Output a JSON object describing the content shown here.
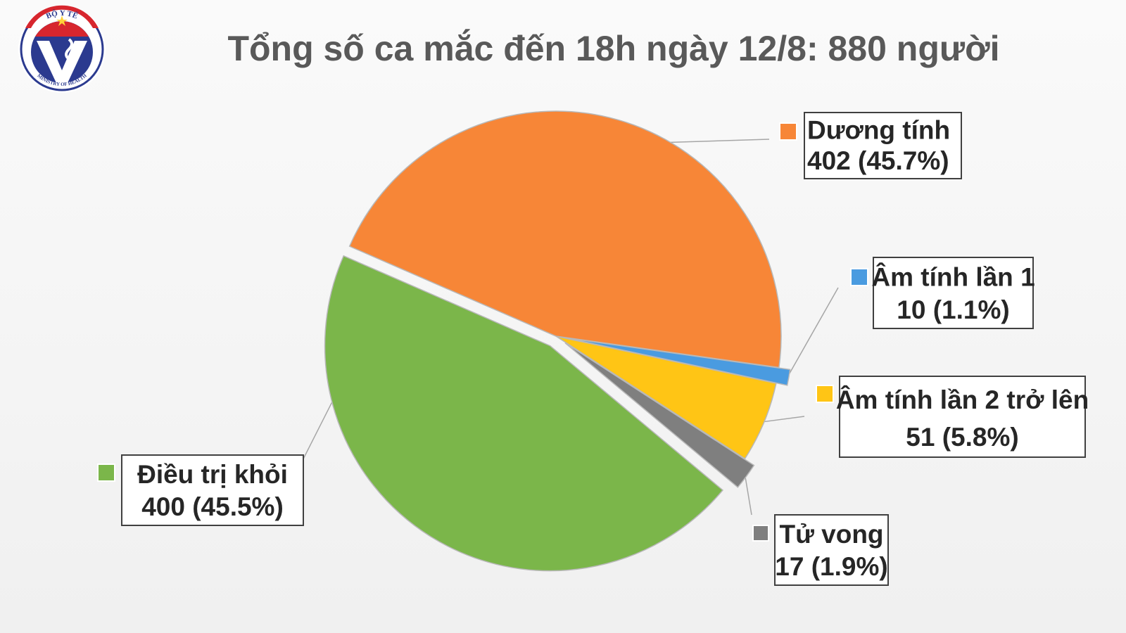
{
  "logo": {
    "top_text": "BỘ Y TẾ",
    "bottom_text": "MINISTRY OF HEALTH",
    "accent_red": "#d7262e",
    "accent_navy": "#2b3a8f"
  },
  "chart_data": {
    "type": "pie",
    "title": "Tổng số ca mắc đến 18h ngày 12/8: 880 người",
    "total": 880,
    "slices": [
      {
        "label": "Dương tính",
        "value_label": "402 (45.7%)",
        "value": 402,
        "percent": 45.7,
        "color": "#f78637",
        "exploded": false
      },
      {
        "label": "Âm tính lần 1",
        "value_label": "10 (1.1%)",
        "value": 10,
        "percent": 1.1,
        "color": "#4a9be0",
        "exploded": true
      },
      {
        "label": "Âm tính lần 2 trở lên",
        "value_label": "51 (5.8%)",
        "value": 51,
        "percent": 5.8,
        "color": "#ffc515",
        "exploded": false
      },
      {
        "label": "Tử vong",
        "value_label": "17 (1.9%)",
        "value": 17,
        "percent": 1.9,
        "color": "#7f7f7f",
        "exploded": true
      },
      {
        "label": "Điều trị khỏi",
        "value_label": "400 (45.5%)",
        "value": 400,
        "percent": 45.5,
        "color": "#7bb64a",
        "exploded": true
      }
    ]
  }
}
